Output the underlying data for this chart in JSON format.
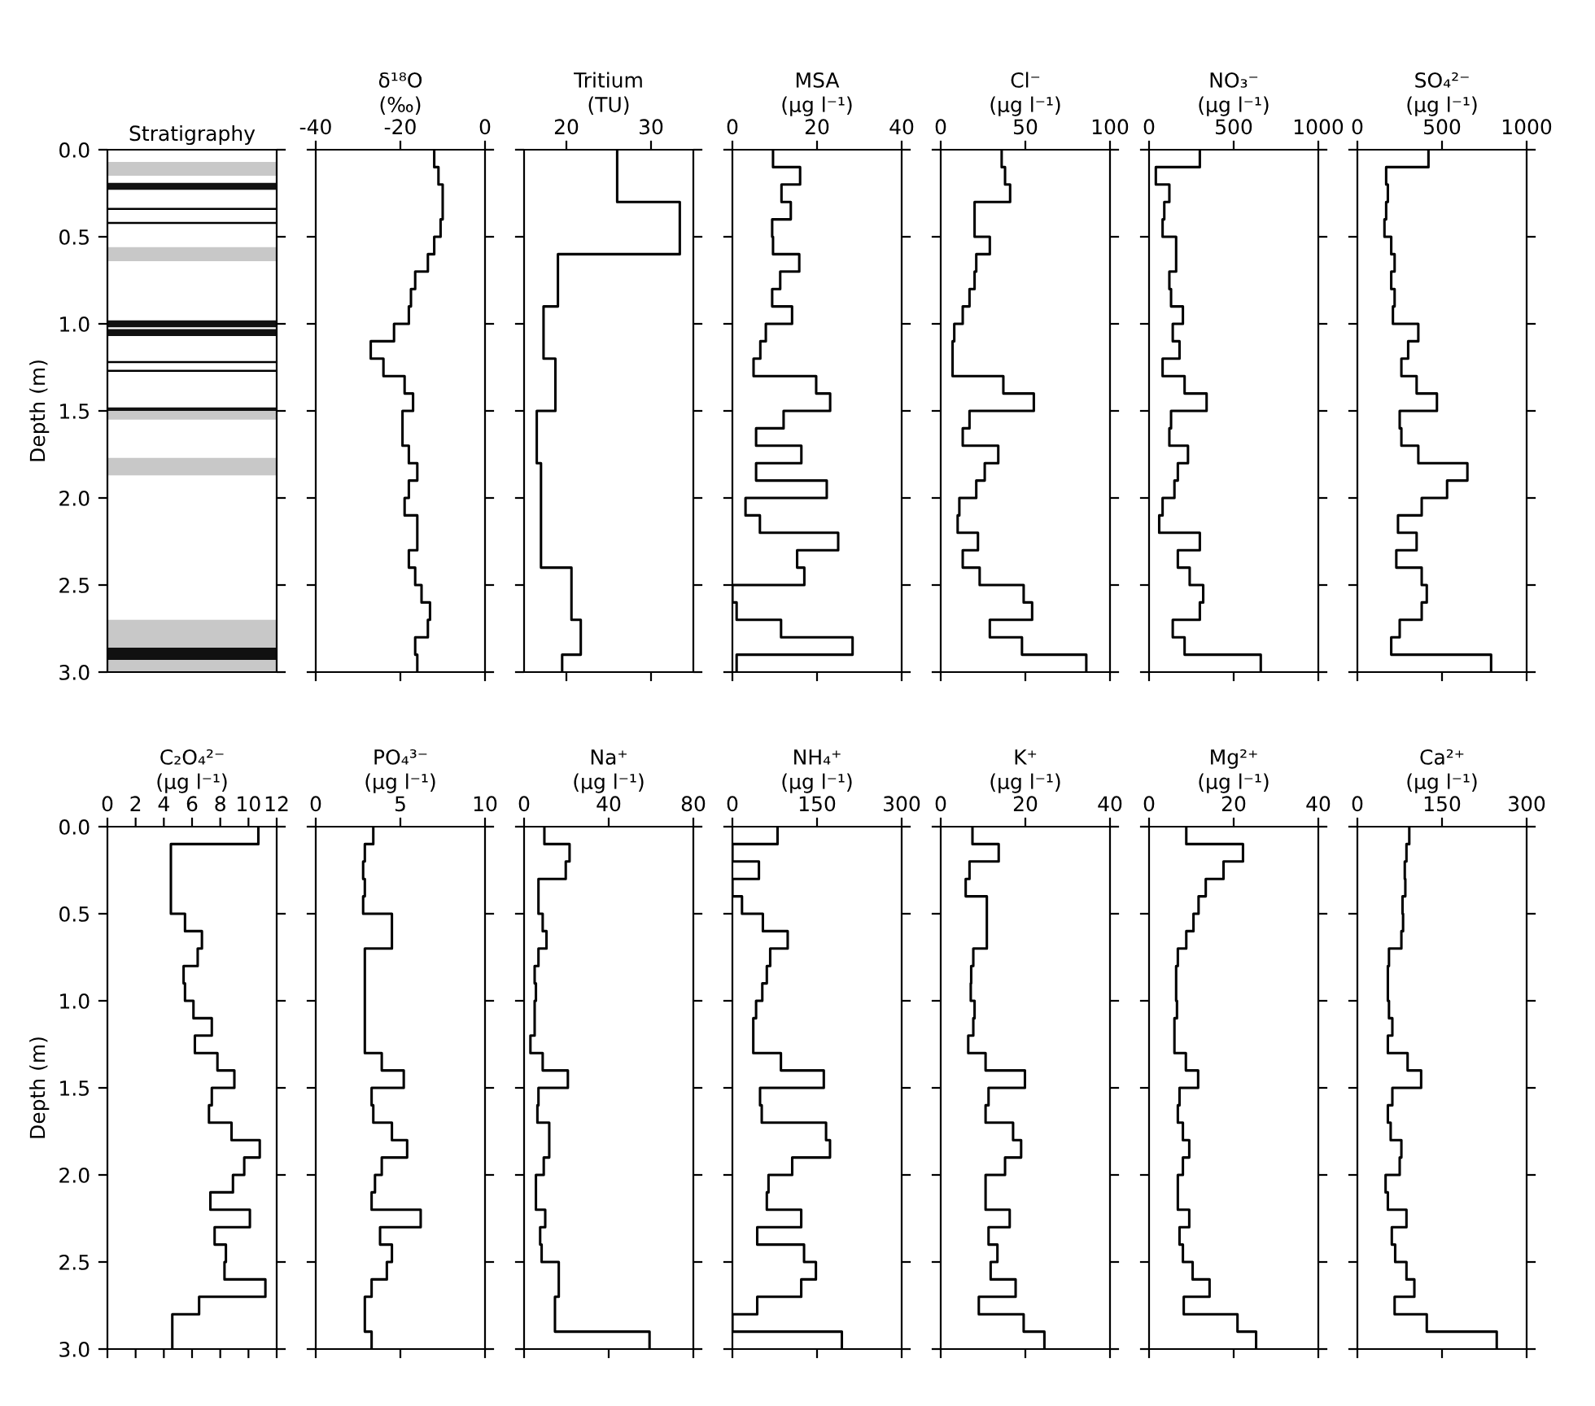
{
  "chart_data": [
    {
      "type": "bar",
      "title": "Stratigraphy",
      "ylabel": "Depth (m)",
      "ylim": [
        3.0,
        0.0
      ],
      "yticks": [
        {
          "value": 0,
          "label": "0.0"
        },
        {
          "value": 0.5,
          "label": "0.5"
        },
        {
          "value": 1,
          "label": "1.0"
        },
        {
          "value": 1.5,
          "label": "1.5"
        },
        {
          "value": 2,
          "label": "2.0"
        },
        {
          "value": 2.5,
          "label": "2.5"
        },
        {
          "value": 3,
          "label": "3.0"
        }
      ],
      "tick_labels": "y",
      "categories": [
        null
      ],
      "series": [
        {
          "color": "#c8c8c8",
          "base": [
            0.07
          ],
          "values": [
            0.08
          ]
        },
        {
          "color": "#111111",
          "base": [
            0.19
          ],
          "values": [
            0.04
          ]
        },
        {
          "color": "#c8c8c8",
          "base": [
            0.56
          ],
          "values": [
            0.08
          ]
        },
        {
          "color": "#111111",
          "base": [
            0.98
          ],
          "values": [
            0.04
          ]
        },
        {
          "color": "#111111",
          "base": [
            1.03
          ],
          "values": [
            0.04
          ]
        },
        {
          "color": "#111111",
          "base": [
            1.48
          ],
          "values": [
            0.02
          ]
        },
        {
          "color": "#c8c8c8",
          "base": [
            1.5
          ],
          "values": [
            0.05
          ]
        },
        {
          "color": "#c8c8c8",
          "base": [
            1.77
          ],
          "values": [
            0.1
          ]
        },
        {
          "color": "#c8c8c8",
          "base": [
            2.7
          ],
          "values": [
            0.16
          ]
        },
        {
          "color": "#111111",
          "base": [
            2.86
          ],
          "values": [
            0.07
          ]
        },
        {
          "color": "#c8c8c8",
          "base": [
            2.93
          ],
          "values": [
            0.07
          ]
        }
      ],
      "ref_lines": [
        {
          "axis": "y",
          "value": 0.34,
          "color": "#000000"
        },
        {
          "axis": "y",
          "value": 0.42,
          "color": "#000000"
        },
        {
          "axis": "y",
          "value": 1.22,
          "color": "#000000"
        },
        {
          "axis": "y",
          "value": 1.27,
          "color": "#000000"
        }
      ]
    },
    {
      "type": "step",
      "orientation": "horizontal",
      "title": "δ¹⁸O",
      "xlabel": "(‰)",
      "color": "#000000",
      "xlim": [
        -40,
        0
      ],
      "xticks": [
        -40,
        -20,
        0
      ],
      "ylim": [
        3.0,
        0.0
      ],
      "yticks": [
        {
          "value": 0,
          "label": null
        },
        {
          "value": 0.5,
          "label": null
        },
        {
          "value": 1,
          "label": null
        },
        {
          "value": 1.5,
          "label": null
        },
        {
          "value": 2,
          "label": null
        },
        {
          "value": 2.5,
          "label": null
        },
        {
          "value": 3,
          "label": null
        }
      ],
      "tick_labels": "x",
      "x": [
        0,
        0.1,
        0.2,
        0.3,
        0.4,
        0.5,
        0.6,
        0.7,
        0.8,
        0.9,
        1.0,
        1.1,
        1.2,
        1.3,
        1.4,
        1.5,
        1.6,
        1.7,
        1.8,
        1.9,
        2.0,
        2.1,
        2.2,
        2.3,
        2.4,
        2.5,
        2.6,
        2.7,
        2.8,
        2.9,
        3.0
      ],
      "values": [
        -12,
        -11,
        -10,
        -10,
        -10.5,
        -12,
        -13.5,
        -16.5,
        -17.5,
        -18,
        -21.5,
        -27,
        -24,
        -19,
        -17,
        -19.5,
        -19.5,
        -18,
        -16,
        -18,
        -19,
        -16,
        -16,
        -18,
        -16.5,
        -15,
        -13,
        -13.5,
        -16.5,
        -16,
        -16
      ]
    },
    {
      "type": "step",
      "orientation": "horizontal",
      "title": "Tritium",
      "xlabel": "(TU)",
      "color": "#000000",
      "xlim": [
        15,
        35
      ],
      "xticks": [
        20,
        30
      ],
      "ylim": [
        3.0,
        0.0
      ],
      "yticks": [
        {
          "value": 0,
          "label": null
        },
        {
          "value": 0.5,
          "label": null
        },
        {
          "value": 1,
          "label": null
        },
        {
          "value": 1.5,
          "label": null
        },
        {
          "value": 2,
          "label": null
        },
        {
          "value": 2.5,
          "label": null
        },
        {
          "value": 3,
          "label": null
        }
      ],
      "tick_labels": "x",
      "x": [
        0,
        0.1,
        0.2,
        0.3,
        0.4,
        0.5,
        0.6,
        0.7,
        0.8,
        0.9,
        1.0,
        1.1,
        1.2,
        1.3,
        1.4,
        1.5,
        1.6,
        1.7,
        1.8,
        1.9,
        2.0,
        2.1,
        2.2,
        2.3,
        2.4,
        2.5,
        2.6,
        2.7,
        2.8,
        2.9,
        3.0
      ],
      "values": [
        26,
        26,
        26,
        33.4,
        33.4,
        33.4,
        19,
        19,
        19,
        17.3,
        17.3,
        17.3,
        18.7,
        18.7,
        18.7,
        16.5,
        16.5,
        16.5,
        17,
        17,
        17,
        17,
        17,
        17,
        20.6,
        20.6,
        20.6,
        21.7,
        21.7,
        19.5,
        19.5
      ]
    },
    {
      "type": "step",
      "orientation": "horizontal",
      "title": "MSA",
      "xlabel": "(μg l⁻¹)",
      "color": "#000000",
      "xlim": [
        0,
        40
      ],
      "xticks": [
        0,
        20,
        40
      ],
      "ylim": [
        3.0,
        0.0
      ],
      "yticks": [
        {
          "value": 0,
          "label": null
        },
        {
          "value": 0.5,
          "label": null
        },
        {
          "value": 1,
          "label": null
        },
        {
          "value": 1.5,
          "label": null
        },
        {
          "value": 2,
          "label": null
        },
        {
          "value": 2.5,
          "label": null
        },
        {
          "value": 3,
          "label": null
        }
      ],
      "tick_labels": "x",
      "x": [
        0,
        0.1,
        0.2,
        0.3,
        0.4,
        0.5,
        0.6,
        0.7,
        0.8,
        0.9,
        1.0,
        1.1,
        1.2,
        1.3,
        1.4,
        1.5,
        1.6,
        1.7,
        1.8,
        1.9,
        2.0,
        2.1,
        2.2,
        2.3,
        2.4,
        2.5,
        2.6,
        2.7,
        2.8,
        2.9,
        3.0
      ],
      "values": [
        9.6,
        16,
        11.6,
        13.8,
        9.4,
        9.6,
        15.8,
        11.3,
        9.4,
        14.1,
        7.9,
        6.6,
        5,
        19.8,
        23.1,
        12.1,
        5.6,
        16.3,
        5.6,
        22.3,
        3.1,
        6.5,
        25,
        15.3,
        17,
        0,
        1,
        11.5,
        28.4,
        1,
        1
      ]
    },
    {
      "type": "step",
      "orientation": "horizontal",
      "title": "Cl⁻",
      "xlabel": "(μg l⁻¹)",
      "color": "#000000",
      "xlim": [
        0,
        100
      ],
      "xticks": [
        0,
        50,
        100
      ],
      "ylim": [
        3.0,
        0.0
      ],
      "yticks": [
        {
          "value": 0,
          "label": null
        },
        {
          "value": 0.5,
          "label": null
        },
        {
          "value": 1,
          "label": null
        },
        {
          "value": 1.5,
          "label": null
        },
        {
          "value": 2,
          "label": null
        },
        {
          "value": 2.5,
          "label": null
        },
        {
          "value": 3,
          "label": null
        }
      ],
      "tick_labels": "x",
      "x": [
        0,
        0.1,
        0.2,
        0.3,
        0.4,
        0.5,
        0.6,
        0.7,
        0.8,
        0.9,
        1.0,
        1.1,
        1.2,
        1.3,
        1.4,
        1.5,
        1.6,
        1.7,
        1.8,
        1.9,
        2.0,
        2.1,
        2.2,
        2.3,
        2.4,
        2.5,
        2.6,
        2.7,
        2.8,
        2.9,
        3.0
      ],
      "values": [
        36,
        38,
        41,
        20,
        20,
        29,
        21,
        20,
        17,
        13,
        8,
        7,
        7,
        37,
        55,
        17,
        13,
        34,
        26,
        21,
        11,
        10,
        22,
        13,
        23,
        49,
        54,
        29,
        48,
        86,
        86
      ]
    },
    {
      "type": "step",
      "orientation": "horizontal",
      "title": "NO₃⁻",
      "xlabel": "(μg l⁻¹)",
      "color": "#000000",
      "xlim": [
        0,
        1000
      ],
      "xticks": [
        0,
        500,
        1000
      ],
      "ylim": [
        3.0,
        0.0
      ],
      "yticks": [
        {
          "value": 0,
          "label": null
        },
        {
          "value": 0.5,
          "label": null
        },
        {
          "value": 1,
          "label": null
        },
        {
          "value": 1.5,
          "label": null
        },
        {
          "value": 2,
          "label": null
        },
        {
          "value": 2.5,
          "label": null
        },
        {
          "value": 3,
          "label": null
        }
      ],
      "tick_labels": "x",
      "x": [
        0,
        0.1,
        0.2,
        0.3,
        0.4,
        0.5,
        0.6,
        0.7,
        0.8,
        0.9,
        1.0,
        1.1,
        1.2,
        1.3,
        1.4,
        1.5,
        1.6,
        1.7,
        1.8,
        1.9,
        2.0,
        2.1,
        2.2,
        2.3,
        2.4,
        2.5,
        2.6,
        2.7,
        2.8,
        2.9,
        3.0
      ],
      "values": [
        300,
        40,
        120,
        90,
        80,
        160,
        160,
        120,
        130,
        200,
        140,
        180,
        80,
        210,
        340,
        130,
        120,
        230,
        170,
        150,
        80,
        60,
        300,
        170,
        240,
        320,
        300,
        140,
        210,
        660,
        660
      ]
    },
    {
      "type": "step",
      "orientation": "horizontal",
      "title": "SO₄²⁻",
      "xlabel": "(μg l⁻¹)",
      "color": "#000000",
      "xlim": [
        0,
        1000
      ],
      "xticks": [
        0,
        500,
        1000
      ],
      "ylim": [
        3.0,
        0.0
      ],
      "yticks": [
        {
          "value": 0,
          "label": null
        },
        {
          "value": 0.5,
          "label": null
        },
        {
          "value": 1,
          "label": null
        },
        {
          "value": 1.5,
          "label": null
        },
        {
          "value": 2,
          "label": null
        },
        {
          "value": 2.5,
          "label": null
        },
        {
          "value": 3,
          "label": null
        }
      ],
      "tick_labels": "x",
      "x": [
        0,
        0.1,
        0.2,
        0.3,
        0.4,
        0.5,
        0.6,
        0.7,
        0.8,
        0.9,
        1.0,
        1.1,
        1.2,
        1.3,
        1.4,
        1.5,
        1.6,
        1.7,
        1.8,
        1.9,
        2.0,
        2.1,
        2.2,
        2.3,
        2.4,
        2.5,
        2.6,
        2.7,
        2.8,
        2.9,
        3.0
      ],
      "values": [
        420,
        170,
        180,
        170,
        160,
        200,
        220,
        200,
        220,
        210,
        360,
        300,
        260,
        350,
        470,
        250,
        260,
        360,
        650,
        530,
        380,
        240,
        350,
        230,
        380,
        410,
        380,
        250,
        200,
        790,
        790
      ]
    },
    {
      "type": "step",
      "orientation": "horizontal",
      "title": "C₂O₄²⁻",
      "xlabel": "(μg l⁻¹)",
      "ylabel": "Depth (m)",
      "color": "#000000",
      "xlim": [
        0,
        12
      ],
      "xticks": [
        0,
        2,
        4,
        6,
        8,
        10,
        12
      ],
      "ylim": [
        3.0,
        0.0
      ],
      "yticks": [
        {
          "value": 0,
          "label": "0.0"
        },
        {
          "value": 0.5,
          "label": "0.5"
        },
        {
          "value": 1,
          "label": "1.0"
        },
        {
          "value": 1.5,
          "label": "1.5"
        },
        {
          "value": 2,
          "label": "2.0"
        },
        {
          "value": 2.5,
          "label": "2.5"
        },
        {
          "value": 3,
          "label": "3.0"
        }
      ],
      "x": [
        0,
        0.1,
        0.2,
        0.3,
        0.4,
        0.5,
        0.6,
        0.7,
        0.8,
        0.9,
        1.0,
        1.1,
        1.2,
        1.3,
        1.4,
        1.5,
        1.6,
        1.7,
        1.8,
        1.9,
        2.0,
        2.1,
        2.2,
        2.3,
        2.4,
        2.5,
        2.6,
        2.7,
        2.8,
        2.9,
        3.0
      ],
      "values": [
        10.7,
        4.5,
        4.5,
        4.5,
        4.5,
        5.5,
        6.7,
        6.4,
        5.4,
        5.5,
        6.1,
        7.4,
        6.2,
        7.8,
        9.0,
        7.4,
        7.2,
        8.8,
        10.8,
        9.7,
        8.9,
        7.3,
        10.1,
        7.6,
        8.4,
        8.3,
        11.2,
        6.5,
        4.6,
        4.6,
        4.6
      ]
    },
    {
      "type": "step",
      "orientation": "horizontal",
      "title": "PO₄³⁻",
      "xlabel": "(μg l⁻¹)",
      "color": "#000000",
      "xlim": [
        0,
        10
      ],
      "xticks": [
        0,
        5,
        10
      ],
      "ylim": [
        3.0,
        0.0
      ],
      "yticks": [
        {
          "value": 0,
          "label": null
        },
        {
          "value": 0.5,
          "label": null
        },
        {
          "value": 1,
          "label": null
        },
        {
          "value": 1.5,
          "label": null
        },
        {
          "value": 2,
          "label": null
        },
        {
          "value": 2.5,
          "label": null
        },
        {
          "value": 3,
          "label": null
        }
      ],
      "tick_labels": "x",
      "x": [
        0,
        0.1,
        0.2,
        0.3,
        0.4,
        0.5,
        0.6,
        0.7,
        0.8,
        0.9,
        1.0,
        1.1,
        1.2,
        1.3,
        1.4,
        1.5,
        1.6,
        1.7,
        1.8,
        1.9,
        2.0,
        2.1,
        2.2,
        2.3,
        2.4,
        2.5,
        2.6,
        2.7,
        2.8,
        2.9,
        3.0
      ],
      "values": [
        3.4,
        2.9,
        2.8,
        2.9,
        2.8,
        4.5,
        4.5,
        2.9,
        2.9,
        2.9,
        2.9,
        2.9,
        2.9,
        3.9,
        5.2,
        3.3,
        3.4,
        4.5,
        5.4,
        3.9,
        3.5,
        3.3,
        6.2,
        3.8,
        4.5,
        4.2,
        3.3,
        2.9,
        2.9,
        3.3,
        3.3
      ]
    },
    {
      "type": "step",
      "orientation": "horizontal",
      "title": "Na⁺",
      "xlabel": "(μg l⁻¹)",
      "color": "#000000",
      "xlim": [
        0,
        80
      ],
      "xticks": [
        0,
        40,
        80
      ],
      "ylim": [
        3.0,
        0.0
      ],
      "yticks": [
        {
          "value": 0,
          "label": null
        },
        {
          "value": 0.5,
          "label": null
        },
        {
          "value": 1,
          "label": null
        },
        {
          "value": 1.5,
          "label": null
        },
        {
          "value": 2,
          "label": null
        },
        {
          "value": 2.5,
          "label": null
        },
        {
          "value": 3,
          "label": null
        }
      ],
      "tick_labels": "x",
      "x": [
        0,
        0.1,
        0.2,
        0.3,
        0.4,
        0.5,
        0.6,
        0.7,
        0.8,
        0.9,
        1.0,
        1.1,
        1.2,
        1.3,
        1.4,
        1.5,
        1.6,
        1.7,
        1.8,
        1.9,
        2.0,
        2.1,
        2.2,
        2.3,
        2.4,
        2.5,
        2.6,
        2.7,
        2.8,
        2.9,
        3.0
      ],
      "values": [
        9.6,
        21.5,
        19.7,
        6.8,
        6.8,
        8.8,
        10.6,
        6.8,
        5,
        5.6,
        5,
        5,
        3,
        8.8,
        20.7,
        6.8,
        6.3,
        11.9,
        11.9,
        9.3,
        5.6,
        5.6,
        10,
        7.6,
        8.3,
        16.4,
        16.4,
        14.6,
        14.6,
        59.3,
        59.3
      ]
    },
    {
      "type": "step",
      "orientation": "horizontal",
      "title": "NH₄⁺",
      "xlabel": "(μg l⁻¹)",
      "color": "#000000",
      "xlim": [
        0,
        300
      ],
      "xticks": [
        0,
        150,
        300
      ],
      "ylim": [
        3.0,
        0.0
      ],
      "yticks": [
        {
          "value": 0,
          "label": null
        },
        {
          "value": 0.5,
          "label": null
        },
        {
          "value": 1,
          "label": null
        },
        {
          "value": 1.5,
          "label": null
        },
        {
          "value": 2,
          "label": null
        },
        {
          "value": 2.5,
          "label": null
        },
        {
          "value": 3,
          "label": null
        }
      ],
      "tick_labels": "x",
      "x": [
        0,
        0.1,
        0.2,
        0.3,
        0.4,
        0.5,
        0.6,
        0.7,
        0.8,
        0.9,
        1.0,
        1.1,
        1.2,
        1.3,
        1.4,
        1.5,
        1.6,
        1.7,
        1.8,
        1.9,
        2.0,
        2.1,
        2.2,
        2.3,
        2.4,
        2.5,
        2.6,
        2.7,
        2.8,
        2.9,
        3.0
      ],
      "values": [
        80,
        0,
        47,
        0,
        17,
        54,
        98,
        67,
        61,
        53,
        42,
        37,
        37,
        86,
        162,
        49,
        52,
        166,
        173,
        106,
        64,
        61,
        122,
        44,
        127,
        148,
        122,
        44,
        0,
        194,
        194
      ]
    },
    {
      "type": "step",
      "orientation": "horizontal",
      "title": "K⁺",
      "xlabel": "(μg l⁻¹)",
      "color": "#000000",
      "xlim": [
        0,
        40
      ],
      "xticks": [
        0,
        20,
        40
      ],
      "ylim": [
        3.0,
        0.0
      ],
      "yticks": [
        {
          "value": 0,
          "label": null
        },
        {
          "value": 0.5,
          "label": null
        },
        {
          "value": 1,
          "label": null
        },
        {
          "value": 1.5,
          "label": null
        },
        {
          "value": 2,
          "label": null
        },
        {
          "value": 2.5,
          "label": null
        },
        {
          "value": 3,
          "label": null
        }
      ],
      "tick_labels": "x",
      "x": [
        0,
        0.1,
        0.2,
        0.3,
        0.4,
        0.5,
        0.6,
        0.7,
        0.8,
        0.9,
        1.0,
        1.1,
        1.2,
        1.3,
        1.4,
        1.5,
        1.6,
        1.7,
        1.8,
        1.9,
        2.0,
        2.1,
        2.2,
        2.3,
        2.4,
        2.5,
        2.6,
        2.7,
        2.8,
        2.9,
        3.0
      ],
      "values": [
        7.5,
        13.7,
        6.8,
        5.9,
        10.9,
        10.9,
        10.9,
        7.7,
        7.2,
        7.1,
        8,
        7.7,
        6.5,
        10.6,
        19.9,
        11.3,
        10.6,
        17.1,
        19,
        15.2,
        10.6,
        10.6,
        16.3,
        11.3,
        13.4,
        11.8,
        17.7,
        9,
        19.6,
        24.5,
        24.5
      ]
    },
    {
      "type": "step",
      "orientation": "horizontal",
      "title": "Mg²⁺",
      "xlabel": "(μg l⁻¹)",
      "color": "#000000",
      "xlim": [
        0,
        40
      ],
      "xticks": [
        0,
        20,
        40
      ],
      "ylim": [
        3.0,
        0.0
      ],
      "yticks": [
        {
          "value": 0,
          "label": null
        },
        {
          "value": 0.5,
          "label": null
        },
        {
          "value": 1,
          "label": null
        },
        {
          "value": 1.5,
          "label": null
        },
        {
          "value": 2,
          "label": null
        },
        {
          "value": 2.5,
          "label": null
        },
        {
          "value": 3,
          "label": null
        }
      ],
      "tick_labels": "x",
      "x": [
        0,
        0.1,
        0.2,
        0.3,
        0.4,
        0.5,
        0.6,
        0.7,
        0.8,
        0.9,
        1.0,
        1.1,
        1.2,
        1.3,
        1.4,
        1.5,
        1.6,
        1.7,
        1.8,
        1.9,
        2.0,
        2.1,
        2.2,
        2.3,
        2.4,
        2.5,
        2.6,
        2.7,
        2.8,
        2.9,
        3.0
      ],
      "values": [
        8.8,
        22.2,
        17.6,
        13.4,
        11.7,
        10.5,
        8.8,
        6.8,
        6.4,
        6.4,
        6.6,
        6,
        6,
        8.7,
        11.6,
        7.2,
        6.8,
        8,
        9.5,
        8,
        6.8,
        6.8,
        9.5,
        7.2,
        8,
        10.3,
        14.3,
        8.2,
        20.9,
        25.3,
        25.3
      ]
    },
    {
      "type": "step",
      "orientation": "horizontal",
      "title": "Ca²⁺",
      "xlabel": "(μg l⁻¹)",
      "color": "#000000",
      "xlim": [
        0,
        300
      ],
      "xticks": [
        0,
        150,
        300
      ],
      "ylim": [
        3.0,
        0.0
      ],
      "yticks": [
        {
          "value": 0,
          "label": null
        },
        {
          "value": 0.5,
          "label": null
        },
        {
          "value": 1,
          "label": null
        },
        {
          "value": 1.5,
          "label": null
        },
        {
          "value": 2,
          "label": null
        },
        {
          "value": 2.5,
          "label": null
        },
        {
          "value": 3,
          "label": null
        }
      ],
      "tick_labels": "x",
      "x": [
        0,
        0.1,
        0.2,
        0.3,
        0.4,
        0.5,
        0.6,
        0.7,
        0.8,
        0.9,
        1.0,
        1.1,
        1.2,
        1.3,
        1.4,
        1.5,
        1.6,
        1.7,
        1.8,
        1.9,
        2.0,
        2.1,
        2.2,
        2.3,
        2.4,
        2.5,
        2.6,
        2.7,
        2.8,
        2.9,
        3.0
      ],
      "values": [
        92,
        87,
        84,
        85,
        80,
        81,
        78,
        56,
        54,
        54,
        56,
        62,
        54,
        89,
        113,
        62,
        54,
        59,
        78,
        75,
        50,
        54,
        87,
        61,
        67,
        87,
        101,
        66,
        123,
        247,
        247
      ]
    }
  ]
}
